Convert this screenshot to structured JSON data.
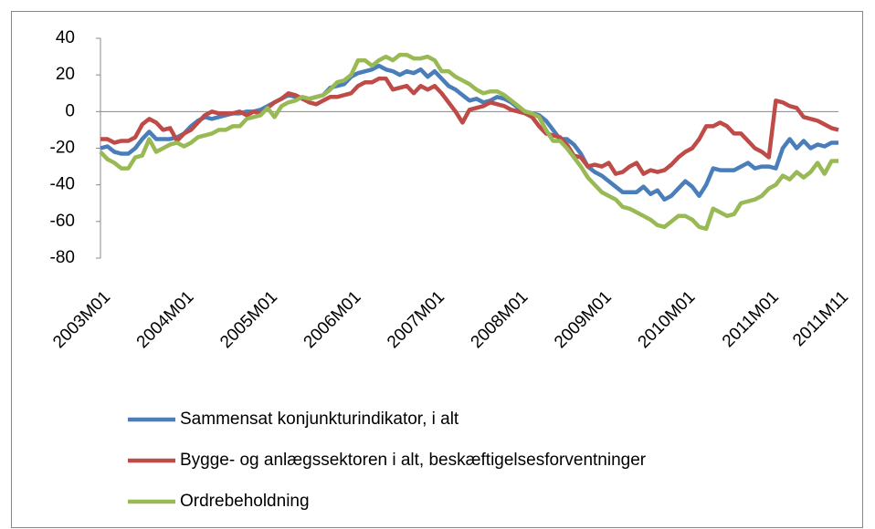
{
  "chart_data": {
    "type": "line",
    "categories": [
      "2003M01",
      null,
      null,
      null,
      null,
      null,
      null,
      null,
      null,
      null,
      null,
      null,
      "2004M01",
      null,
      null,
      null,
      null,
      null,
      null,
      null,
      null,
      null,
      null,
      null,
      "2005M01",
      null,
      null,
      null,
      null,
      null,
      null,
      null,
      null,
      null,
      null,
      null,
      "2006M01",
      null,
      null,
      null,
      null,
      null,
      null,
      null,
      null,
      null,
      null,
      null,
      "2007M01",
      null,
      null,
      null,
      null,
      null,
      null,
      null,
      null,
      null,
      null,
      null,
      "2008M01",
      null,
      null,
      null,
      null,
      null,
      null,
      null,
      null,
      null,
      null,
      null,
      "2009M01",
      null,
      null,
      null,
      null,
      null,
      null,
      null,
      null,
      null,
      null,
      null,
      "2010M01",
      null,
      null,
      null,
      null,
      null,
      null,
      null,
      null,
      null,
      null,
      null,
      "2011M01",
      null,
      null,
      null,
      null,
      null,
      null,
      null,
      null,
      null,
      "2011M11"
    ],
    "series": [
      {
        "name": "Sammensat  konjunkturindikator, i alt",
        "color": "#4a7ebb",
        "values": [
          -20,
          -19,
          -22,
          -23,
          -23,
          -20,
          -15,
          -11,
          -15,
          -15,
          -15,
          -14,
          -12,
          -8,
          -5,
          -3,
          -4,
          -3,
          -2,
          -1,
          -1,
          0,
          0,
          1,
          3,
          5,
          7,
          9,
          8,
          7,
          7,
          8,
          9,
          13,
          14,
          15,
          19,
          21,
          22,
          23,
          25,
          23,
          22,
          20,
          22,
          21,
          23,
          19,
          22,
          18,
          14,
          12,
          9,
          6,
          7,
          5,
          6,
          8,
          7,
          5,
          2,
          0,
          -1,
          -2,
          -5,
          -10,
          -15,
          -15,
          -18,
          -23,
          -30,
          -33,
          -35,
          -38,
          -41,
          -44,
          -44,
          -44,
          -41,
          -45,
          -43,
          -48,
          -46,
          -42,
          -38,
          -41,
          -46,
          -40,
          -31,
          -32,
          -32,
          -32,
          -30,
          -28,
          -31,
          -30,
          -30,
          -31,
          -20,
          -15,
          -20,
          -16,
          -20,
          -18,
          -19,
          -17,
          -17
        ]
      },
      {
        "name": "Bygge- og anlægssektoren i alt, beskæftigelsesforventninger",
        "color": "#be4b48",
        "values": [
          -15,
          -15,
          -17,
          -16,
          -16,
          -14,
          -7,
          -4,
          -6,
          -10,
          -9,
          -16,
          -12,
          -10,
          -6,
          -2,
          0,
          -1,
          -1,
          -1,
          0,
          -2,
          0,
          -1,
          2,
          5,
          7,
          10,
          9,
          7,
          5,
          4,
          6,
          8,
          8,
          9,
          10,
          14,
          16,
          16,
          18,
          18,
          12,
          13,
          14,
          10,
          14,
          12,
          14,
          10,
          5,
          0,
          -6,
          1,
          2,
          3,
          5,
          4,
          3,
          1,
          0,
          -1,
          -3,
          -8,
          -12,
          -13,
          -14,
          -18,
          -24,
          -25,
          -30,
          -29,
          -30,
          -28,
          -34,
          -33,
          -30,
          -28,
          -34,
          -32,
          -33,
          -32,
          -29,
          -25,
          -22,
          -20,
          -15,
          -8,
          -8,
          -6,
          -8,
          -12,
          -12,
          -16,
          -20,
          -22,
          -25,
          6,
          5,
          3,
          2,
          -3,
          -4,
          -5,
          -7,
          -9,
          -10
        ]
      },
      {
        "name": "Ordrebeholdning",
        "color": "#98b954",
        "values": [
          -22,
          -26,
          -28,
          -31,
          -31,
          -25,
          -24,
          -15,
          -22,
          -20,
          -18,
          -17,
          -19,
          -17,
          -14,
          -13,
          -12,
          -10,
          -10,
          -8,
          -8,
          -4,
          -3,
          -2,
          2,
          -3,
          3,
          5,
          6,
          8,
          7,
          8,
          9,
          12,
          16,
          17,
          20,
          28,
          28,
          25,
          28,
          30,
          28,
          31,
          31,
          29,
          29,
          30,
          28,
          22,
          22,
          19,
          17,
          15,
          12,
          10,
          11,
          11,
          9,
          6,
          3,
          0,
          -1,
          -3,
          -10,
          -16,
          -16,
          -20,
          -25,
          -30,
          -36,
          -40,
          -44,
          -46,
          -48,
          -52,
          -53,
          -55,
          -57,
          -59,
          -62,
          -63,
          -60,
          -57,
          -57,
          -59,
          -63,
          -64,
          -53,
          -55,
          -57,
          -56,
          -50,
          -49,
          -48,
          -46,
          -42,
          -40,
          -35,
          -37,
          -33,
          -36,
          -33,
          -28,
          -34,
          -27,
          -27
        ]
      }
    ],
    "ylim": [
      -80,
      40
    ],
    "yticks": [
      -80,
      -60,
      -40,
      -20,
      0,
      20,
      40
    ],
    "grid": false,
    "legend": "bottom"
  }
}
